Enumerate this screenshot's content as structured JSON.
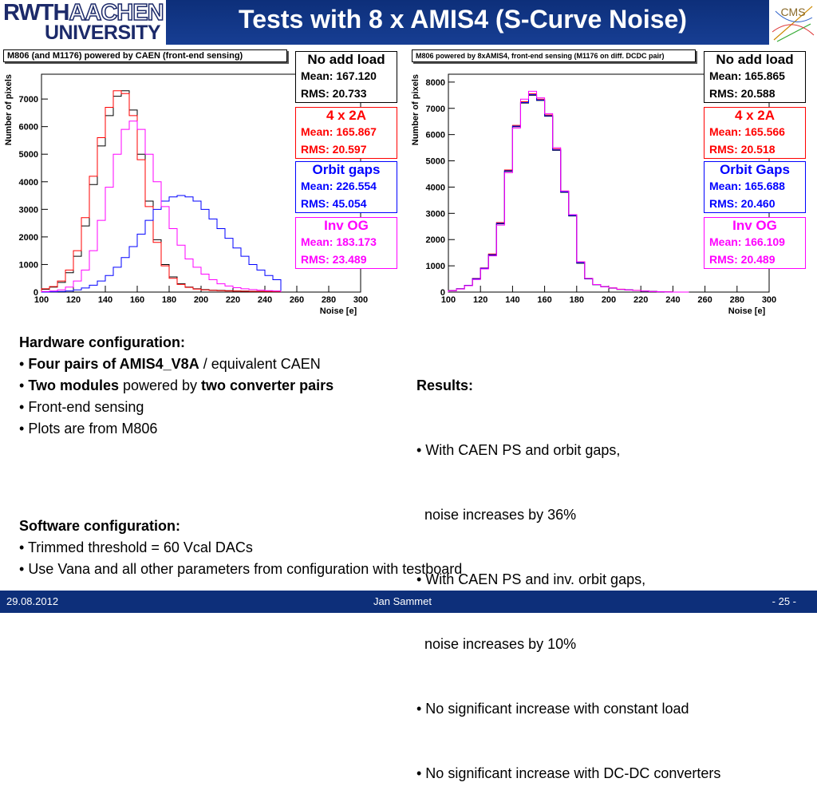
{
  "header": {
    "logo_line1_a": "RWTH",
    "logo_line1_b": "AACHEN",
    "logo_line2": "UNIVERSITY",
    "title": "Tests with 8 x AMIS4 (S-Curve Noise)",
    "cms_logo": "CMS"
  },
  "colors": {
    "black": "#000000",
    "red": "#ff0000",
    "blue": "#0000ff",
    "magenta": "#ff00ff",
    "header": "#0d2f7a"
  },
  "chart_data": [
    {
      "type": "histogram",
      "title": "M806 (and M1176) powered by CAEN (front-end sensing)",
      "xlabel": "Noise [e]",
      "ylabel": "Number of pixels",
      "xlim": [
        100,
        300
      ],
      "ylim": [
        0,
        7900
      ],
      "xticks": [
        "100",
        "120",
        "140",
        "160",
        "180",
        "200",
        "220",
        "240",
        "260",
        "280",
        "300"
      ],
      "yticks": [
        "0",
        "1000",
        "2000",
        "3000",
        "4000",
        "5000",
        "6000",
        "7000"
      ],
      "ytick_values": [
        0,
        1000,
        2000,
        3000,
        4000,
        5000,
        6000,
        7000
      ],
      "bin_edges_start": 100,
      "bin_width": 5,
      "series": [
        {
          "name": "No add load",
          "color": "#000000",
          "values": [
            100,
            180,
            350,
            700,
            1300,
            2400,
            3900,
            5300,
            6400,
            7100,
            7300,
            6600,
            5000,
            3300,
            1900,
            1000,
            550,
            300,
            180,
            120,
            90,
            70,
            60,
            50,
            40,
            35,
            30,
            30,
            25,
            25
          ]
        },
        {
          "name": "4 x 2A",
          "color": "#ff0000",
          "values": [
            120,
            200,
            400,
            800,
            1500,
            2700,
            4200,
            5600,
            6700,
            7300,
            7200,
            6400,
            4800,
            3100,
            1800,
            950,
            500,
            280,
            170,
            110,
            80,
            60,
            50,
            40,
            35,
            30,
            25,
            25,
            20,
            20
          ]
        },
        {
          "name": "Orbit gaps",
          "color": "#0000ff",
          "values": [
            0,
            10,
            20,
            40,
            80,
            150,
            250,
            400,
            600,
            900,
            1250,
            1650,
            2100,
            2600,
            3000,
            3300,
            3450,
            3500,
            3450,
            3300,
            3000,
            2650,
            2300,
            1950,
            1600,
            1300,
            1000,
            800,
            600,
            450
          ]
        },
        {
          "name": "Inv OG",
          "color": "#ff00ff",
          "values": [
            20,
            40,
            80,
            180,
            400,
            800,
            1500,
            2600,
            3800,
            5000,
            5900,
            6200,
            5900,
            5000,
            4000,
            3100,
            2300,
            1700,
            1200,
            900,
            650,
            450,
            300,
            220,
            160,
            120,
            90,
            70,
            50,
            40
          ]
        }
      ],
      "stats": [
        {
          "name": "No add load",
          "mean": "Mean: 167.120",
          "rms": "RMS: 20.733",
          "color": "#000000"
        },
        {
          "name": "4 x 2A",
          "mean": "Mean: 165.867",
          "rms": "RMS: 20.597",
          "color": "#ff0000"
        },
        {
          "name": "Orbit gaps",
          "mean": "Mean: 226.554",
          "rms": "RMS: 45.054",
          "color": "#0000ff"
        },
        {
          "name": "Inv OG",
          "mean": "Mean: 183.173",
          "rms": "RMS: 23.489",
          "color": "#ff00ff"
        }
      ]
    },
    {
      "type": "histogram",
      "title": "M806 powered by 8xAMIS4, front-end sensing (M1176 on diff. DCDC pair)",
      "xlabel": "Noise [e]",
      "ylabel": "Number of pixels",
      "xlim": [
        100,
        300
      ],
      "ylim": [
        0,
        8300
      ],
      "xticks": [
        "100",
        "120",
        "140",
        "160",
        "180",
        "200",
        "220",
        "240",
        "260",
        "280",
        "300"
      ],
      "yticks": [
        "0",
        "1000",
        "2000",
        "3000",
        "4000",
        "5000",
        "6000",
        "7000",
        "8000"
      ],
      "ytick_values": [
        0,
        1000,
        2000,
        3000,
        4000,
        5000,
        6000,
        7000,
        8000
      ],
      "bin_edges_start": 100,
      "bin_width": 5,
      "series": [
        {
          "name": "No add load",
          "color": "#000000",
          "values": [
            50,
            120,
            250,
            500,
            900,
            1400,
            2600,
            4600,
            6300,
            7200,
            7500,
            7300,
            6700,
            5400,
            3800,
            2900,
            1100,
            500,
            280,
            200,
            150,
            100,
            80,
            60,
            40,
            20,
            10,
            5,
            0,
            0
          ]
        },
        {
          "name": "4 x 2A",
          "color": "#ff0000",
          "values": [
            60,
            130,
            260,
            520,
            920,
            1450,
            2650,
            4650,
            6350,
            7250,
            7550,
            7350,
            6750,
            5450,
            3850,
            2950,
            1150,
            520,
            290,
            210,
            160,
            110,
            85,
            65,
            45,
            25,
            12,
            6,
            0,
            0
          ]
        },
        {
          "name": "Orbit Gaps",
          "color": "#0000ff",
          "values": [
            55,
            125,
            255,
            510,
            910,
            1420,
            2620,
            4620,
            6320,
            7220,
            7520,
            7320,
            6720,
            5420,
            3820,
            2920,
            1120,
            510,
            285,
            205,
            155,
            105,
            82,
            62,
            42,
            22,
            11,
            5,
            0,
            0
          ]
        },
        {
          "name": "Inv OG",
          "color": "#ff00ff",
          "values": [
            50,
            115,
            245,
            480,
            880,
            1380,
            2550,
            4550,
            6250,
            7350,
            7650,
            7400,
            6800,
            5500,
            3850,
            2950,
            1150,
            520,
            290,
            205,
            155,
            105,
            80,
            60,
            40,
            20,
            10,
            5,
            0,
            0
          ]
        }
      ],
      "stats": [
        {
          "name": "No add load",
          "mean": "Mean: 165.865",
          "rms": "RMS: 20.588",
          "color": "#000000"
        },
        {
          "name": "4 x 2A",
          "mean": "Mean: 165.566",
          "rms": "RMS: 20.518",
          "color": "#ff0000"
        },
        {
          "name": "Orbit Gaps",
          "mean": "Mean: 165.688",
          "rms": "RMS: 20.460",
          "color": "#0000ff"
        },
        {
          "name": "Inv OG",
          "mean": "Mean: 166.109",
          "rms": "RMS: 20.489",
          "color": "#ff00ff"
        }
      ]
    }
  ],
  "hardware": {
    "heading": "Hardware configuration:",
    "item1_bold": "Four pairs of AMIS4_V8A",
    "item1_rest": " / equivalent CAEN",
    "item2_bold1": "Two modules",
    "item2_mid": " powered by ",
    "item2_bold2": "two converter pairs",
    "item3": "Front-end sensing",
    "item4": "Plots are from M806"
  },
  "results": {
    "heading": "Results:",
    "lines": [
      "• With CAEN PS and orbit gaps,",
      "  noise increases by 36%",
      "• With CAEN PS and inv. orbit gaps,",
      "  noise increases by 10%",
      "• No significant increase with constant load",
      "• No significant increase with DC-DC converters"
    ]
  },
  "software": {
    "heading": "Software configuration:",
    "item1": "Trimmed threshold = 60 Vcal DACs",
    "item2": "Use Vana and all other parameters from configuration with testboard"
  },
  "footer": {
    "date": "29.08.2012",
    "author": "Jan Sammet",
    "page": "- 25 -"
  }
}
